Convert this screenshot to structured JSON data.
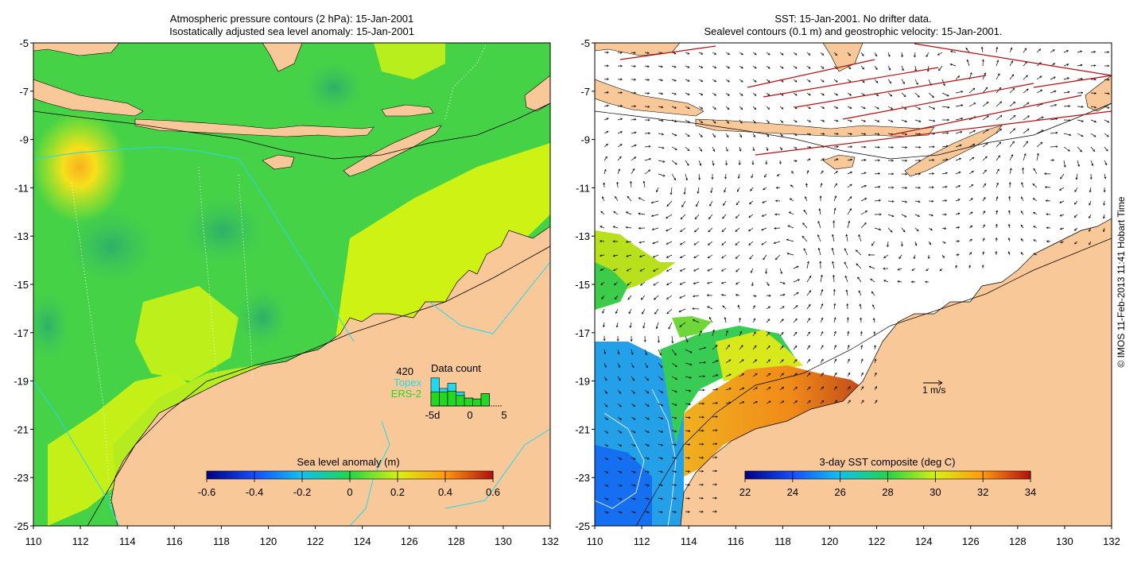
{
  "left_panel": {
    "title_line1": "Atmospheric pressure contours (2 hPa): 15-Jan-2001",
    "title_line2": "Isostatically adjusted sea level anomaly: 15-Jan-2001",
    "x_ticks": [
      "110",
      "112",
      "114",
      "116",
      "118",
      "120",
      "122",
      "124",
      "126",
      "128",
      "130",
      "132"
    ],
    "y_ticks": [
      "-5",
      "-7",
      "-9",
      "-11",
      "-13",
      "-15",
      "-17",
      "-19",
      "-21",
      "-23",
      "-25"
    ],
    "colorbar": {
      "label": "Sea level anomaly (m)",
      "ticks": [
        "-0.6",
        "-0.4",
        "-0.2",
        "0",
        "0.2",
        "0.4",
        "0.6"
      ]
    },
    "data_count": {
      "title": "Data count",
      "total": "420",
      "topex_label": "Topex",
      "ers_label": "ERS-2",
      "x_ticks": [
        "-5d",
        "0",
        "5"
      ],
      "topex_counts": [
        3.2,
        2.0,
        2.6,
        1.6,
        0.9,
        0.8,
        1.4
      ],
      "ers_counts": [
        1.6,
        1.6,
        1.7,
        1.2,
        0.9,
        0.8,
        1.4
      ]
    }
  },
  "right_panel": {
    "title_line1": "SST: 15-Jan-2001. No drifter data.",
    "title_line2": "Sealevel contours (0.1 m) and geostrophic velocity: 15-Jan-2001.",
    "x_ticks": [
      "110",
      "112",
      "114",
      "116",
      "118",
      "120",
      "122",
      "124",
      "126",
      "128",
      "130",
      "132"
    ],
    "y_ticks": [
      "-5",
      "-7",
      "-9",
      "-11",
      "-13",
      "-15",
      "-17",
      "-19",
      "-21",
      "-23",
      "-25"
    ],
    "colorbar": {
      "label": "3-day SST composite (deg C)",
      "ticks": [
        "22",
        "24",
        "26",
        "28",
        "30",
        "32",
        "34"
      ]
    },
    "velocity_scale_label": "1 m/s"
  },
  "credit": "© IMOS 11-Feb-2013 11:41 Hobart Time",
  "colors": {
    "land": "#f9c899",
    "ocean_green": "#4fd64a",
    "ocean_lime": "#cdf213",
    "topex": "#22d8f0",
    "ers2": "#22d822"
  }
}
